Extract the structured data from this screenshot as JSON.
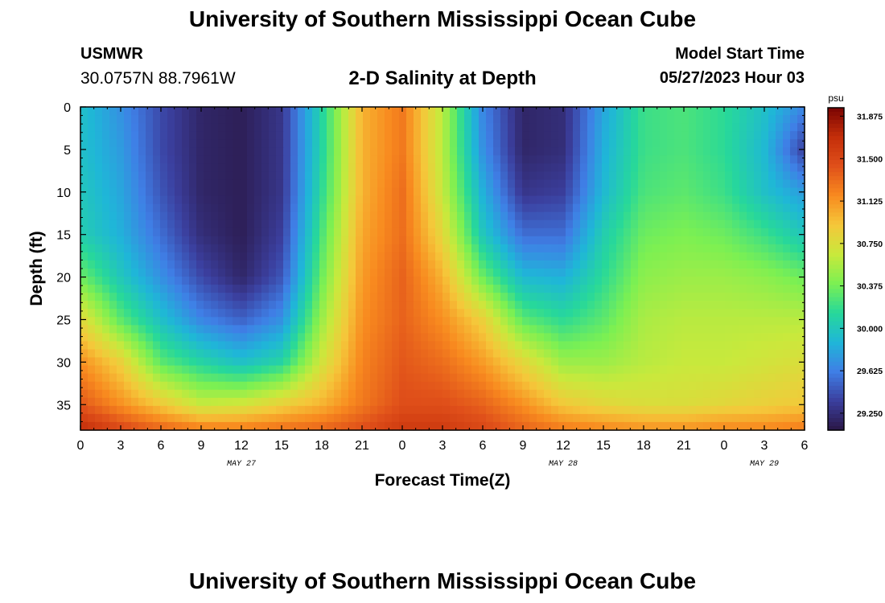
{
  "header": {
    "title": "University of Southern Mississippi Ocean Cube",
    "station": "USMWR",
    "coords": "30.0757N  88.7961W",
    "subtitle": "2-D Salinity at Depth",
    "model_start_label": "Model Start Time",
    "model_start_value": "05/27/2023 Hour 03"
  },
  "footer": {
    "title": "University of Southern Mississippi Ocean Cube"
  },
  "colors": {
    "colormap": [
      "#2a1746",
      "#3b3f9e",
      "#3f7fe6",
      "#1fb6d8",
      "#27d89a",
      "#7cf052",
      "#c9e93c",
      "#f5c73a",
      "#f88a1f",
      "#e0501a",
      "#c42e0a",
      "#7a0403"
    ]
  },
  "chart_data": {
    "type": "heatmap",
    "xlabel": "Forecast Time(Z)",
    "ylabel": "Depth (ft)",
    "x_ticks": [
      "0",
      "3",
      "6",
      "9",
      "12",
      "15",
      "18",
      "21",
      "0",
      "3",
      "6",
      "9",
      "12",
      "15",
      "18",
      "21",
      "0",
      "3",
      "6"
    ],
    "x_range_hours": [
      0,
      54
    ],
    "date_labels": [
      {
        "text": "MAY 27",
        "hour": 12
      },
      {
        "text": "MAY 28",
        "hour": 36
      },
      {
        "text": "MAY 29",
        "hour": 51
      }
    ],
    "y_ticks": [
      0,
      5,
      10,
      15,
      20,
      25,
      30,
      35
    ],
    "ylim": [
      0,
      38
    ],
    "colorbar": {
      "unit": "psu",
      "range": [
        29.1,
        31.95
      ],
      "ticks": [
        "31.875",
        "31.500",
        "31.125",
        "30.750",
        "30.375",
        "30.000",
        "29.625",
        "29.250"
      ]
    },
    "depth_axis": [
      0,
      5,
      10,
      15,
      20,
      25,
      30,
      35,
      38
    ],
    "time_axis": [
      0,
      3,
      6,
      9,
      12,
      15,
      18,
      21,
      24,
      27,
      30,
      33,
      36,
      39,
      42,
      45,
      48,
      51,
      54
    ],
    "salinity": [
      [
        29.95,
        29.7,
        29.4,
        29.2,
        29.15,
        29.3,
        30.1,
        31.0,
        31.25,
        30.6,
        29.65,
        29.2,
        29.25,
        29.8,
        30.2,
        30.25,
        30.15,
        29.95,
        29.65
      ],
      [
        29.95,
        29.75,
        29.4,
        29.2,
        29.15,
        29.3,
        30.1,
        31.0,
        31.25,
        30.6,
        29.7,
        29.2,
        29.25,
        29.85,
        30.2,
        30.25,
        30.15,
        29.9,
        29.35
      ],
      [
        30.0,
        29.8,
        29.45,
        29.2,
        29.15,
        29.3,
        30.15,
        31.0,
        31.3,
        30.65,
        29.85,
        29.3,
        29.35,
        29.9,
        30.25,
        30.3,
        30.2,
        29.95,
        29.75
      ],
      [
        30.05,
        29.85,
        29.55,
        29.25,
        29.15,
        29.35,
        30.25,
        31.05,
        31.3,
        30.8,
        30.0,
        29.55,
        29.55,
        30.05,
        30.35,
        30.4,
        30.35,
        30.2,
        30.0
      ],
      [
        30.35,
        30.0,
        29.7,
        29.4,
        29.2,
        29.45,
        30.35,
        31.1,
        31.35,
        31.0,
        30.35,
        29.9,
        29.85,
        30.15,
        30.45,
        30.5,
        30.5,
        30.45,
        30.35
      ],
      [
        30.8,
        30.3,
        29.95,
        29.65,
        29.5,
        29.7,
        30.5,
        31.15,
        31.35,
        31.15,
        30.85,
        30.3,
        30.15,
        30.3,
        30.55,
        30.6,
        30.6,
        30.6,
        30.6
      ],
      [
        31.15,
        30.85,
        30.3,
        30.1,
        29.95,
        30.1,
        30.7,
        31.2,
        31.4,
        31.3,
        31.1,
        30.8,
        30.5,
        30.5,
        30.6,
        30.65,
        30.65,
        30.7,
        30.75
      ],
      [
        31.4,
        31.15,
        30.9,
        30.65,
        30.7,
        30.85,
        31.0,
        31.25,
        31.45,
        31.45,
        31.35,
        31.15,
        30.9,
        30.8,
        30.75,
        30.75,
        30.8,
        30.85,
        30.9
      ],
      [
        31.7,
        31.5,
        31.35,
        31.25,
        31.25,
        31.3,
        31.35,
        31.45,
        31.6,
        31.6,
        31.5,
        31.35,
        31.25,
        31.2,
        31.15,
        31.15,
        31.2,
        31.2,
        31.25
      ]
    ]
  }
}
